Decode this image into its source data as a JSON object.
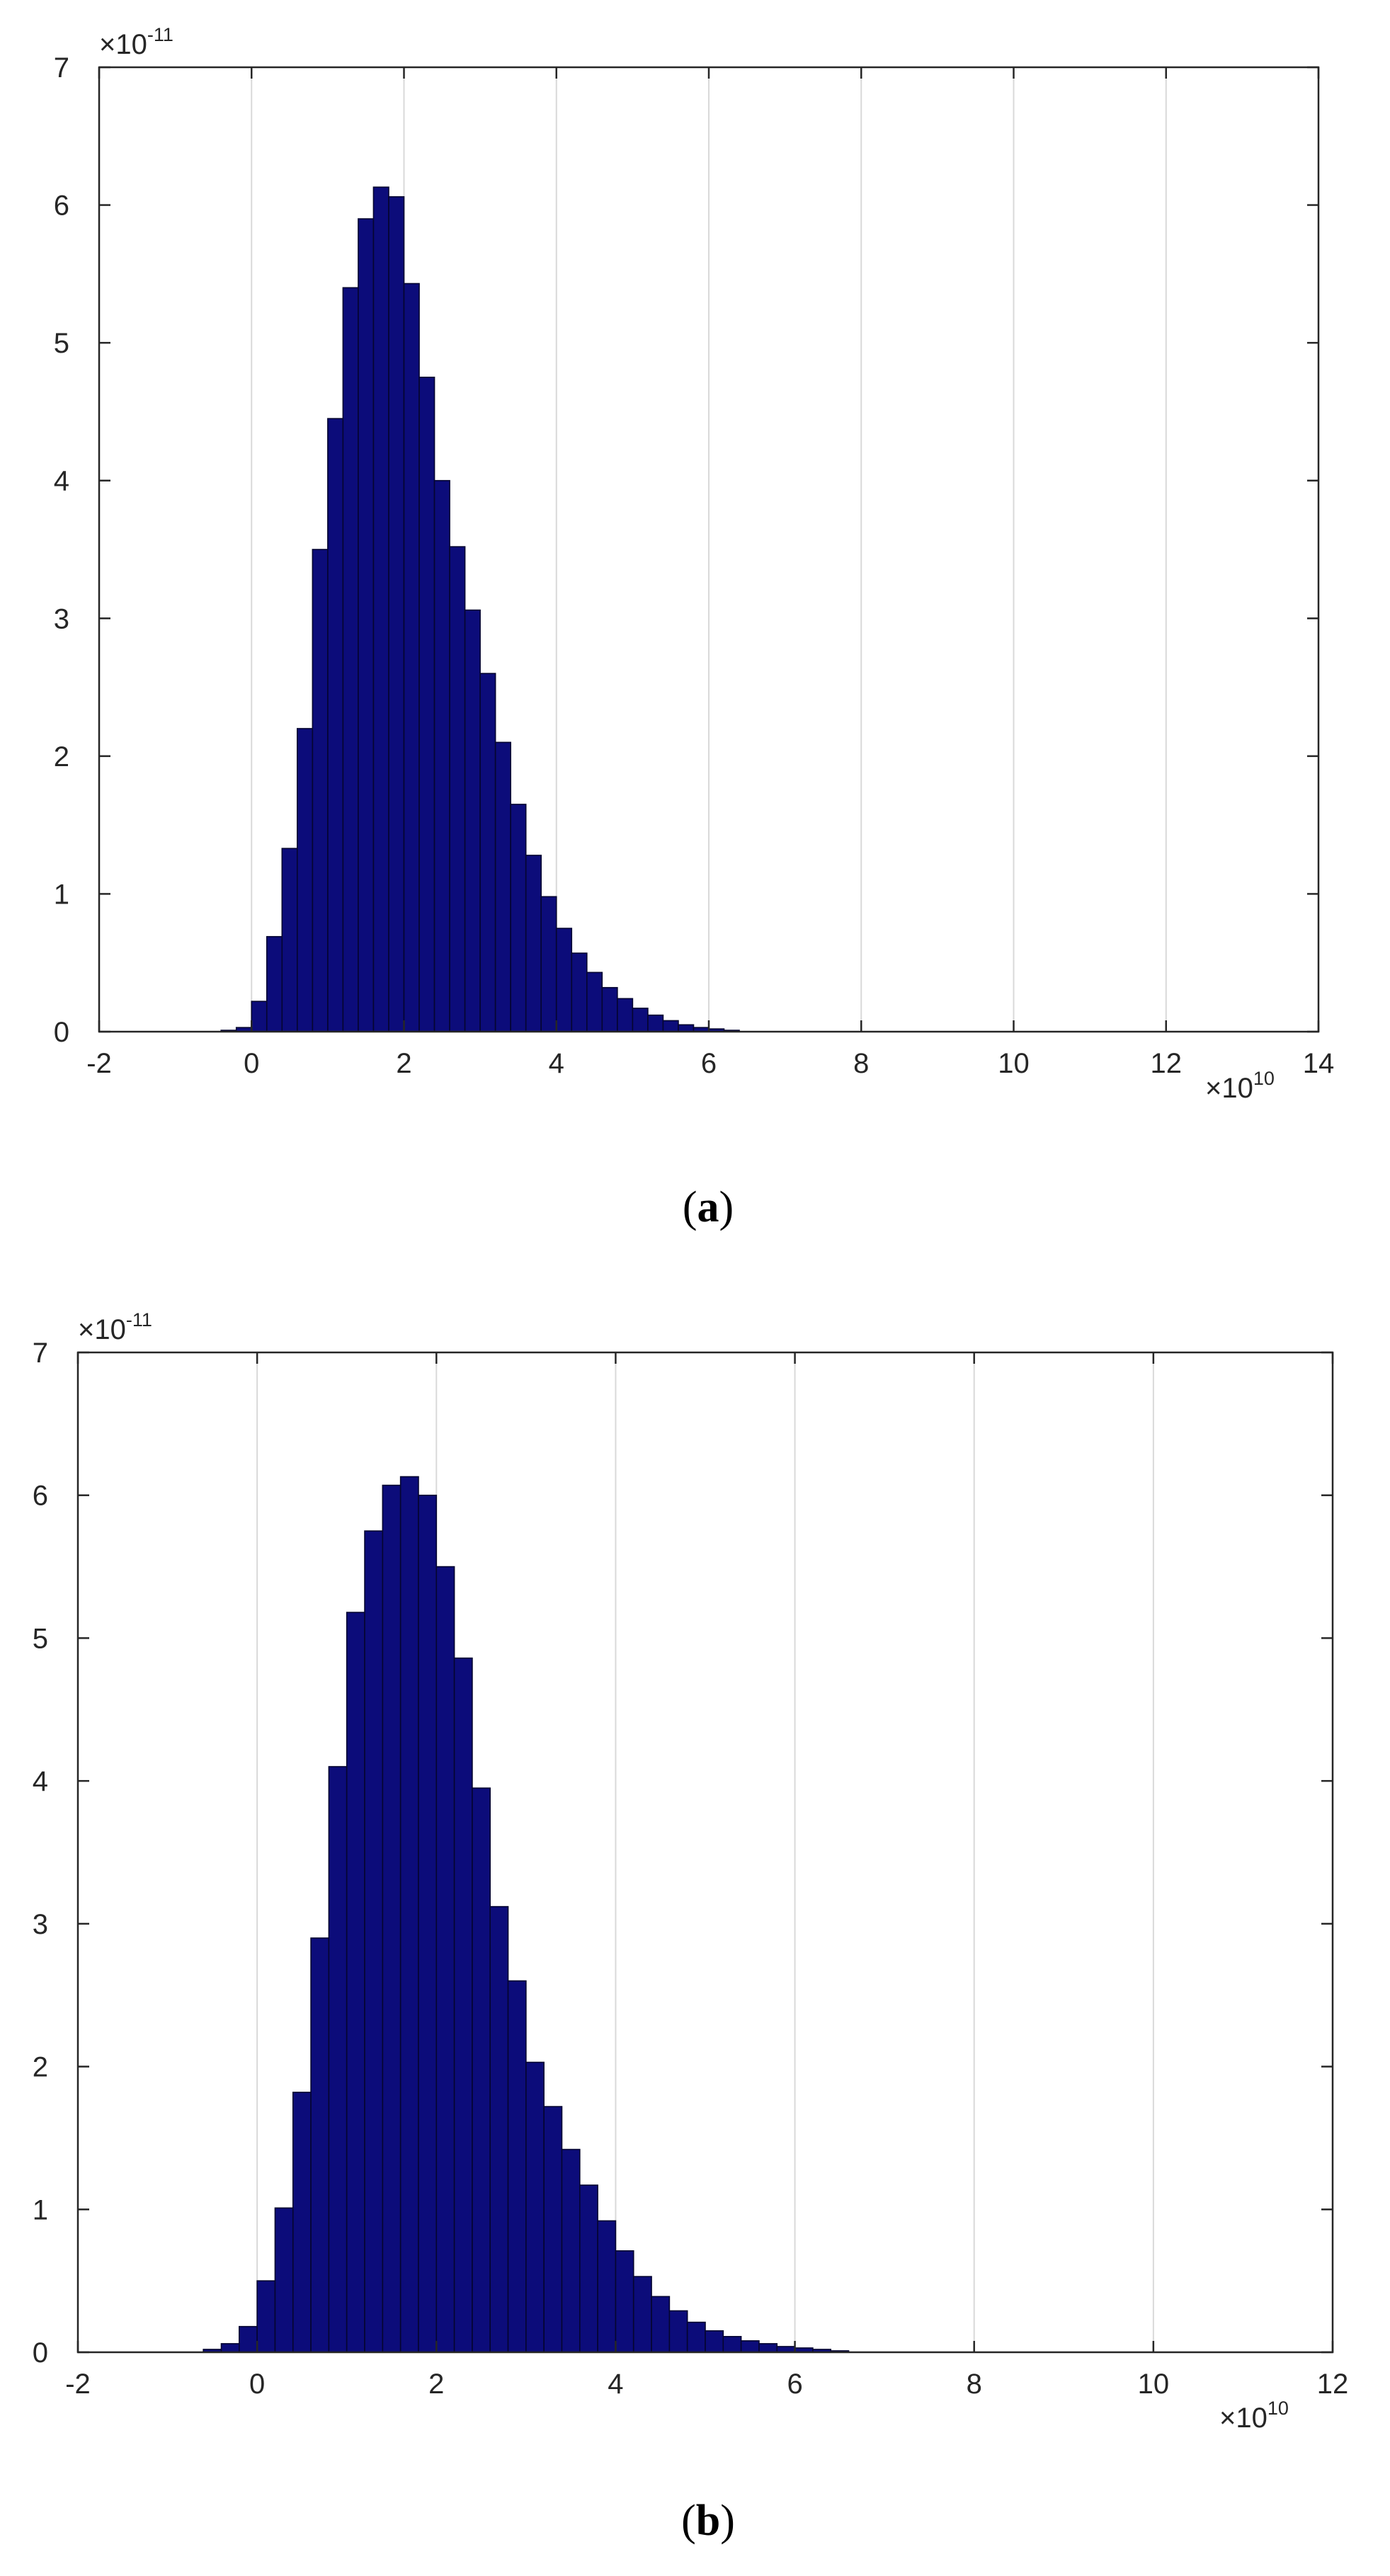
{
  "colors": {
    "bar_fill": "#0c0c7a",
    "bar_edge": "#050530",
    "grid": "#d9d9d9",
    "axis": "#262626"
  },
  "chart_data": [
    {
      "type": "bar",
      "caption": "a",
      "xlim": [
        -2,
        14
      ],
      "ylim": [
        0,
        7
      ],
      "x_ticks": [
        "-2",
        "0",
        "2",
        "4",
        "6",
        "8",
        "10",
        "12",
        "14"
      ],
      "y_ticks": [
        "0",
        "1",
        "2",
        "3",
        "4",
        "5",
        "6",
        "7"
      ],
      "x_exponent": {
        "base": "×10",
        "power": "10"
      },
      "y_exponent": {
        "base": "×10",
        "power": "-11"
      },
      "grid": "x-major",
      "bin_width": 0.2,
      "bins": [
        {
          "x": -0.3,
          "y": 0.01
        },
        {
          "x": -0.1,
          "y": 0.03
        },
        {
          "x": 0.1,
          "y": 0.22
        },
        {
          "x": 0.3,
          "y": 0.69
        },
        {
          "x": 0.5,
          "y": 1.33
        },
        {
          "x": 0.7,
          "y": 2.2
        },
        {
          "x": 0.9,
          "y": 3.5
        },
        {
          "x": 1.1,
          "y": 4.45
        },
        {
          "x": 1.3,
          "y": 5.4
        },
        {
          "x": 1.5,
          "y": 5.9
        },
        {
          "x": 1.7,
          "y": 6.13
        },
        {
          "x": 1.9,
          "y": 6.06
        },
        {
          "x": 2.1,
          "y": 5.43
        },
        {
          "x": 2.3,
          "y": 4.75
        },
        {
          "x": 2.5,
          "y": 4.0
        },
        {
          "x": 2.7,
          "y": 3.52
        },
        {
          "x": 2.9,
          "y": 3.06
        },
        {
          "x": 3.1,
          "y": 2.6
        },
        {
          "x": 3.3,
          "y": 2.1
        },
        {
          "x": 3.5,
          "y": 1.65
        },
        {
          "x": 3.7,
          "y": 1.28
        },
        {
          "x": 3.9,
          "y": 0.98
        },
        {
          "x": 4.1,
          "y": 0.75
        },
        {
          "x": 4.3,
          "y": 0.57
        },
        {
          "x": 4.5,
          "y": 0.43
        },
        {
          "x": 4.7,
          "y": 0.32
        },
        {
          "x": 4.9,
          "y": 0.24
        },
        {
          "x": 5.1,
          "y": 0.17
        },
        {
          "x": 5.3,
          "y": 0.12
        },
        {
          "x": 5.5,
          "y": 0.08
        },
        {
          "x": 5.7,
          "y": 0.05
        },
        {
          "x": 5.9,
          "y": 0.03
        },
        {
          "x": 6.1,
          "y": 0.02
        },
        {
          "x": 6.3,
          "y": 0.01
        }
      ]
    },
    {
      "type": "bar",
      "caption": "b",
      "xlim": [
        -2,
        12
      ],
      "ylim": [
        0,
        7
      ],
      "x_ticks": [
        "-2",
        "0",
        "2",
        "4",
        "6",
        "8",
        "10",
        "12"
      ],
      "y_ticks": [
        "0",
        "1",
        "2",
        "3",
        "4",
        "5",
        "6",
        "7"
      ],
      "x_exponent": {
        "base": "×10",
        "power": "10"
      },
      "y_exponent": {
        "base": "×10",
        "power": "-11"
      },
      "grid": "x-major",
      "bin_width": 0.2,
      "bins": [
        {
          "x": -0.5,
          "y": 0.02
        },
        {
          "x": -0.3,
          "y": 0.06
        },
        {
          "x": -0.1,
          "y": 0.18
        },
        {
          "x": 0.1,
          "y": 0.5
        },
        {
          "x": 0.3,
          "y": 1.01
        },
        {
          "x": 0.5,
          "y": 1.82
        },
        {
          "x": 0.7,
          "y": 2.9
        },
        {
          "x": 0.9,
          "y": 4.1
        },
        {
          "x": 1.1,
          "y": 5.18
        },
        {
          "x": 1.3,
          "y": 5.75
        },
        {
          "x": 1.5,
          "y": 6.07
        },
        {
          "x": 1.7,
          "y": 6.13
        },
        {
          "x": 1.9,
          "y": 6.0
        },
        {
          "x": 2.1,
          "y": 5.5
        },
        {
          "x": 2.3,
          "y": 4.86
        },
        {
          "x": 2.5,
          "y": 3.95
        },
        {
          "x": 2.7,
          "y": 3.12
        },
        {
          "x": 2.9,
          "y": 2.6
        },
        {
          "x": 3.1,
          "y": 2.03
        },
        {
          "x": 3.3,
          "y": 1.72
        },
        {
          "x": 3.5,
          "y": 1.42
        },
        {
          "x": 3.7,
          "y": 1.17
        },
        {
          "x": 3.9,
          "y": 0.92
        },
        {
          "x": 4.1,
          "y": 0.71
        },
        {
          "x": 4.3,
          "y": 0.53
        },
        {
          "x": 4.5,
          "y": 0.39
        },
        {
          "x": 4.7,
          "y": 0.29
        },
        {
          "x": 4.9,
          "y": 0.21
        },
        {
          "x": 5.1,
          "y": 0.15
        },
        {
          "x": 5.3,
          "y": 0.11
        },
        {
          "x": 5.5,
          "y": 0.08
        },
        {
          "x": 5.7,
          "y": 0.06
        },
        {
          "x": 5.9,
          "y": 0.04
        },
        {
          "x": 6.1,
          "y": 0.03
        },
        {
          "x": 6.3,
          "y": 0.02
        },
        {
          "x": 6.5,
          "y": 0.01
        }
      ]
    }
  ]
}
